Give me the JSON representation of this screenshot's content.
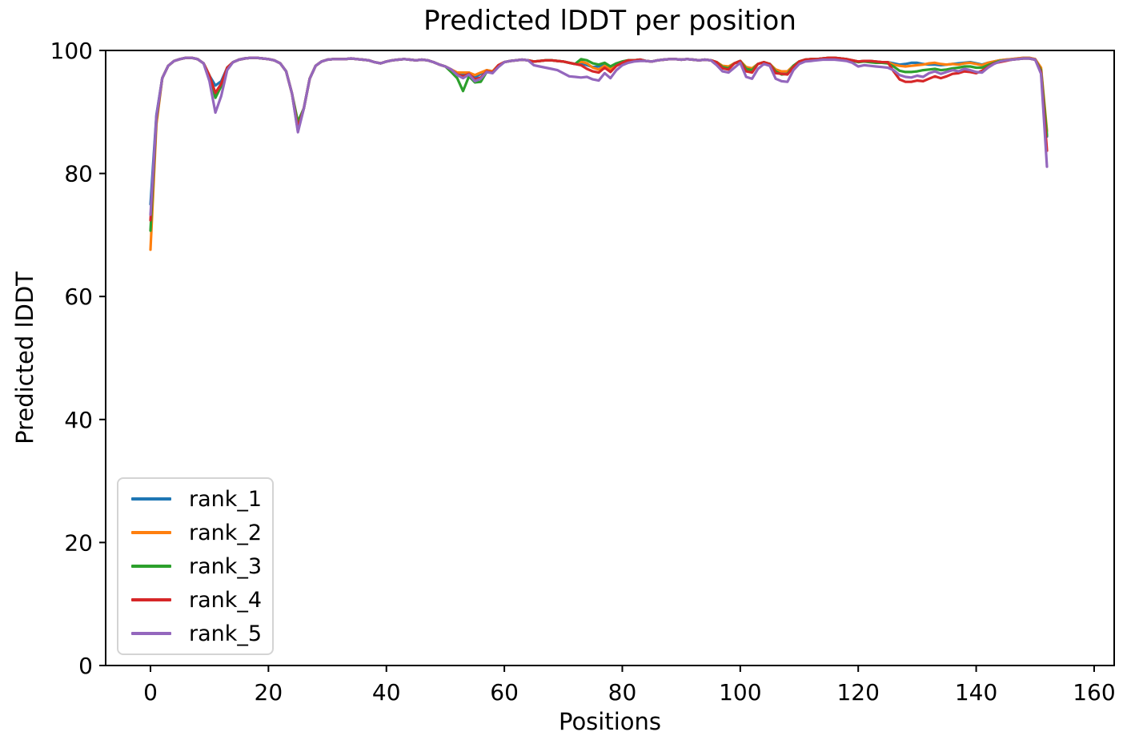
{
  "chart_data": {
    "type": "line",
    "title": "Predicted lDDT per position",
    "xlabel": "Positions",
    "ylabel": "Predicted lDDT",
    "xlim": [
      -7.6,
      163.4
    ],
    "ylim": [
      0,
      100
    ],
    "xticks": [
      0,
      20,
      40,
      60,
      80,
      100,
      120,
      140,
      160
    ],
    "yticks": [
      0,
      20,
      40,
      60,
      80,
      100
    ],
    "grid": false,
    "legend_position": "lower left",
    "x_start": 0,
    "x_step": 1,
    "n_points": 153,
    "x_note": "x value of each point equals its array index (residue position 0-152)",
    "line_width": 3.2,
    "spine_color": "#000000",
    "background_color": "#ffffff",
    "legend_border_color": "#d4d4d4",
    "series": [
      {
        "name": "rank_1",
        "color": "#1f77b4",
        "values": [
          75.0,
          89.5,
          95.5,
          97.5,
          98.3,
          98.6,
          98.8,
          98.8,
          98.6,
          97.9,
          95.9,
          94.3,
          95.0,
          97.2,
          98.1,
          98.5,
          98.7,
          98.8,
          98.8,
          98.7,
          98.6,
          98.4,
          97.9,
          96.6,
          93.0,
          86.9,
          90.6,
          95.4,
          97.5,
          98.2,
          98.5,
          98.6,
          98.6,
          98.6,
          98.7,
          98.6,
          98.5,
          98.4,
          98.1,
          97.9,
          98.2,
          98.4,
          98.5,
          98.6,
          98.5,
          98.4,
          98.5,
          98.4,
          98.1,
          97.7,
          97.4,
          96.9,
          96.2,
          96.0,
          96.4,
          95.6,
          96.2,
          96.8,
          96.6,
          97.6,
          98.1,
          98.3,
          98.4,
          98.5,
          98.4,
          98.2,
          98.3,
          98.4,
          98.4,
          98.3,
          98.2,
          98.0,
          97.8,
          97.9,
          97.6,
          97.3,
          97.4,
          97.8,
          97.2,
          97.8,
          98.2,
          98.4,
          98.4,
          98.5,
          98.3,
          98.2,
          98.4,
          98.5,
          98.6,
          98.6,
          98.5,
          98.6,
          98.5,
          98.4,
          98.5,
          98.4,
          98.1,
          97.4,
          97.2,
          97.9,
          98.3,
          97.2,
          97.0,
          97.8,
          98.1,
          97.8,
          96.8,
          96.5,
          96.5,
          97.5,
          98.2,
          98.5,
          98.6,
          98.6,
          98.7,
          98.8,
          98.8,
          98.7,
          98.6,
          98.4,
          98.2,
          98.3,
          98.3,
          98.2,
          98.1,
          98.1,
          97.9,
          97.7,
          97.8,
          98.0,
          98.0,
          97.8,
          97.7,
          97.7,
          97.6,
          97.7,
          97.8,
          97.9,
          98.0,
          98.1,
          97.9,
          97.7,
          98.0,
          98.2,
          98.4,
          98.5,
          98.6,
          98.7,
          98.8,
          98.8,
          98.6,
          96.9,
          86.0
        ]
      },
      {
        "name": "rank_2",
        "color": "#ff7f0e",
        "values": [
          67.6,
          88.0,
          95.5,
          97.5,
          98.3,
          98.6,
          98.8,
          98.8,
          98.6,
          97.9,
          95.9,
          92.6,
          94.3,
          97.2,
          98.1,
          98.5,
          98.7,
          98.8,
          98.8,
          98.7,
          98.6,
          98.4,
          97.9,
          96.6,
          93.0,
          87.1,
          90.6,
          95.4,
          97.5,
          98.2,
          98.5,
          98.6,
          98.6,
          98.6,
          98.7,
          98.6,
          98.5,
          98.4,
          98.1,
          97.9,
          98.2,
          98.4,
          98.5,
          98.6,
          98.5,
          98.4,
          98.5,
          98.4,
          98.1,
          97.7,
          97.4,
          96.9,
          96.4,
          96.4,
          96.4,
          96.0,
          96.4,
          96.8,
          96.6,
          97.6,
          98.1,
          98.3,
          98.4,
          98.5,
          98.4,
          98.2,
          98.3,
          98.4,
          98.4,
          98.3,
          98.2,
          98.0,
          97.8,
          98.2,
          97.9,
          97.2,
          96.9,
          97.5,
          96.9,
          97.7,
          98.2,
          98.4,
          98.4,
          98.5,
          98.3,
          98.2,
          98.4,
          98.5,
          98.6,
          98.6,
          98.5,
          98.6,
          98.5,
          98.4,
          98.5,
          98.4,
          98.1,
          97.5,
          97.4,
          97.9,
          98.3,
          97.3,
          97.1,
          97.8,
          98.1,
          97.8,
          96.9,
          96.6,
          96.6,
          97.5,
          98.2,
          98.5,
          98.6,
          98.6,
          98.7,
          98.8,
          98.8,
          98.7,
          98.6,
          98.4,
          98.2,
          98.3,
          98.3,
          98.2,
          98.1,
          98.1,
          97.7,
          97.5,
          97.4,
          97.5,
          97.6,
          97.7,
          97.9,
          98.0,
          97.8,
          97.7,
          97.8,
          97.7,
          97.9,
          98.0,
          97.8,
          97.6,
          98.0,
          98.2,
          98.4,
          98.5,
          98.6,
          98.7,
          98.8,
          98.8,
          98.6,
          97.2,
          86.9
        ]
      },
      {
        "name": "rank_3",
        "color": "#2ca02c",
        "values": [
          70.7,
          88.7,
          95.5,
          97.5,
          98.3,
          98.6,
          98.8,
          98.8,
          98.6,
          97.9,
          95.9,
          92.3,
          94.2,
          97.2,
          98.1,
          98.5,
          98.7,
          98.8,
          98.8,
          98.7,
          98.6,
          98.4,
          97.9,
          96.6,
          93.0,
          88.4,
          90.6,
          95.4,
          97.5,
          98.2,
          98.5,
          98.6,
          98.6,
          98.6,
          98.7,
          98.6,
          98.5,
          98.4,
          98.1,
          97.9,
          98.2,
          98.4,
          98.5,
          98.6,
          98.5,
          98.4,
          98.5,
          98.4,
          98.1,
          97.7,
          97.4,
          96.5,
          95.5,
          93.4,
          95.8,
          94.8,
          94.9,
          96.5,
          96.4,
          97.5,
          98.1,
          98.3,
          98.4,
          98.5,
          98.4,
          98.2,
          98.3,
          98.4,
          98.4,
          98.3,
          98.2,
          98.0,
          97.8,
          98.6,
          98.4,
          97.9,
          97.7,
          98.0,
          97.4,
          97.9,
          98.2,
          98.4,
          98.4,
          98.5,
          98.3,
          98.2,
          98.4,
          98.5,
          98.6,
          98.6,
          98.5,
          98.6,
          98.5,
          98.4,
          98.5,
          98.4,
          98.1,
          97.3,
          97.1,
          97.9,
          98.3,
          97.0,
          96.8,
          97.8,
          98.1,
          97.8,
          96.6,
          96.1,
          96.2,
          97.5,
          98.2,
          98.5,
          98.6,
          98.6,
          98.7,
          98.8,
          98.8,
          98.7,
          98.6,
          98.3,
          98.1,
          98.2,
          98.1,
          98.0,
          98.0,
          97.9,
          97.4,
          96.7,
          96.5,
          96.5,
          96.6,
          96.8,
          96.9,
          97.0,
          96.8,
          96.9,
          97.1,
          97.2,
          97.4,
          97.4,
          97.2,
          97.2,
          97.6,
          98.0,
          98.3,
          98.4,
          98.5,
          98.6,
          98.7,
          98.7,
          98.5,
          96.8,
          86.2
        ]
      },
      {
        "name": "rank_4",
        "color": "#d62728",
        "values": [
          72.4,
          89.0,
          95.5,
          97.5,
          98.3,
          98.6,
          98.8,
          98.8,
          98.6,
          97.9,
          95.9,
          93.1,
          94.6,
          97.2,
          98.1,
          98.5,
          98.7,
          98.8,
          98.8,
          98.7,
          98.6,
          98.4,
          97.9,
          96.6,
          93.0,
          87.4,
          90.6,
          95.4,
          97.5,
          98.2,
          98.5,
          98.6,
          98.6,
          98.6,
          98.7,
          98.6,
          98.5,
          98.4,
          98.1,
          97.9,
          98.2,
          98.4,
          98.5,
          98.6,
          98.5,
          98.4,
          98.5,
          98.4,
          98.1,
          97.7,
          97.4,
          96.9,
          96.1,
          95.8,
          96.2,
          95.3,
          95.6,
          96.6,
          96.4,
          97.6,
          98.1,
          98.3,
          98.4,
          98.5,
          98.4,
          98.2,
          98.3,
          98.4,
          98.4,
          98.3,
          98.2,
          98.0,
          97.8,
          97.6,
          97.0,
          96.6,
          96.4,
          97.2,
          96.5,
          97.5,
          98.0,
          98.4,
          98.4,
          98.5,
          98.3,
          98.2,
          98.4,
          98.5,
          98.6,
          98.6,
          98.5,
          98.6,
          98.5,
          98.4,
          98.5,
          98.4,
          98.1,
          97.1,
          96.9,
          97.9,
          98.3,
          96.6,
          96.4,
          97.8,
          98.1,
          97.8,
          96.3,
          96.2,
          96.1,
          97.3,
          98.2,
          98.5,
          98.6,
          98.6,
          98.7,
          98.8,
          98.8,
          98.7,
          98.6,
          98.4,
          98.2,
          98.3,
          98.3,
          98.2,
          98.1,
          98.1,
          96.6,
          95.3,
          94.9,
          94.9,
          95.1,
          95.0,
          95.4,
          95.8,
          95.5,
          95.8,
          96.2,
          96.3,
          96.6,
          96.5,
          96.3,
          96.7,
          97.3,
          97.9,
          98.1,
          98.3,
          98.5,
          98.6,
          98.7,
          98.7,
          98.5,
          96.5,
          83.7
        ]
      },
      {
        "name": "rank_5",
        "color": "#9467bd",
        "values": [
          73.3,
          89.3,
          95.5,
          97.5,
          98.3,
          98.6,
          98.8,
          98.8,
          98.6,
          97.9,
          95.0,
          89.9,
          92.6,
          96.8,
          98.1,
          98.5,
          98.7,
          98.8,
          98.8,
          98.7,
          98.6,
          98.4,
          97.9,
          96.6,
          93.0,
          86.7,
          90.6,
          95.4,
          97.5,
          98.2,
          98.5,
          98.6,
          98.6,
          98.6,
          98.7,
          98.6,
          98.5,
          98.4,
          98.1,
          97.9,
          98.2,
          98.4,
          98.5,
          98.6,
          98.5,
          98.4,
          98.5,
          98.4,
          98.1,
          97.7,
          97.4,
          96.9,
          96.0,
          95.5,
          96.1,
          95.0,
          95.4,
          96.5,
          96.3,
          97.3,
          98.1,
          98.3,
          98.4,
          98.5,
          98.4,
          97.6,
          97.4,
          97.2,
          97.0,
          96.8,
          96.3,
          95.8,
          95.7,
          95.6,
          95.7,
          95.3,
          95.1,
          96.3,
          95.5,
          96.8,
          97.6,
          98.0,
          98.2,
          98.3,
          98.3,
          98.2,
          98.4,
          98.5,
          98.6,
          98.6,
          98.5,
          98.6,
          98.5,
          98.4,
          98.5,
          98.4,
          97.6,
          96.6,
          96.4,
          97.2,
          98.0,
          95.7,
          95.4,
          97.0,
          97.8,
          97.5,
          95.4,
          95.0,
          94.9,
          96.8,
          97.8,
          98.2,
          98.3,
          98.4,
          98.5,
          98.5,
          98.5,
          98.4,
          98.3,
          98.0,
          97.4,
          97.6,
          97.5,
          97.4,
          97.3,
          97.2,
          96.8,
          96.0,
          95.7,
          95.6,
          95.9,
          95.7,
          96.3,
          96.6,
          96.2,
          96.5,
          96.8,
          96.6,
          97.0,
          96.8,
          96.5,
          96.4,
          97.2,
          97.8,
          98.2,
          98.4,
          98.5,
          98.6,
          98.7,
          98.7,
          98.5,
          96.2,
          81.1
        ]
      }
    ]
  }
}
